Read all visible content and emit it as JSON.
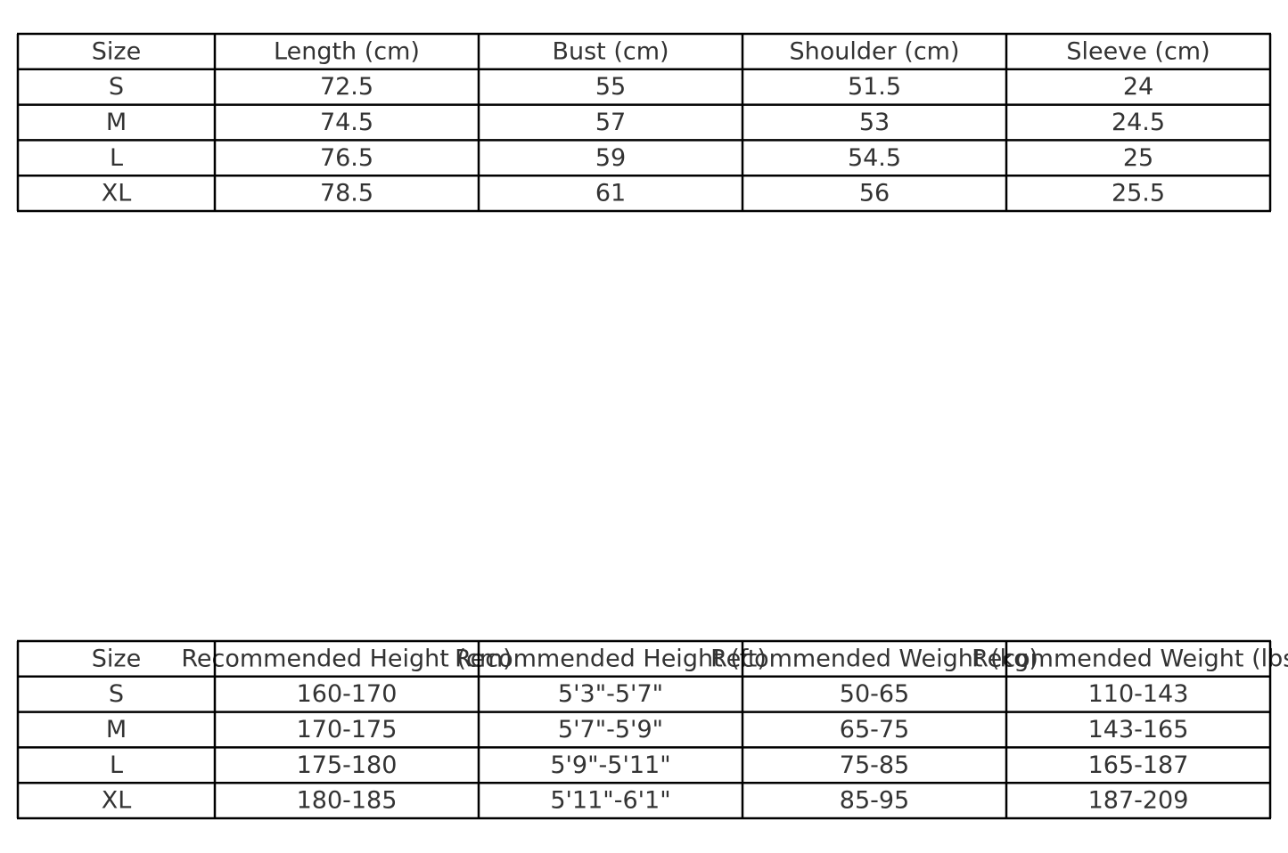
{
  "tables": [
    {
      "header": [
        "Size",
        "Length (cm)",
        "Bust (cm)",
        "Shoulder (cm)",
        "Sleeve (cm)"
      ],
      "rows": [
        [
          "S",
          "72.5",
          "55",
          "51.5",
          "24"
        ],
        [
          "M",
          "74.5",
          "57",
          "53",
          "24.5"
        ],
        [
          "L",
          "76.5",
          "59",
          "54.5",
          "25"
        ],
        [
          "XL",
          "78.5",
          "61",
          "56",
          "25.5"
        ]
      ]
    },
    {
      "header": [
        "Size",
        "Recommended Height (cm)",
        "Recommended Height (ft)",
        "Recommended Weight (kg)",
        "Recommended Weight (lbs)"
      ],
      "rows": [
        [
          "S",
          "160-170",
          "5'3\"-5'7\"",
          "50-65",
          "110-143"
        ],
        [
          "M",
          "170-175",
          "5'7\"-5'9\"",
          "65-75",
          "143-165"
        ],
        [
          "L",
          "175-180",
          "5'9\"-5'11\"",
          "75-85",
          "165-187"
        ],
        [
          "XL",
          "180-185",
          "5'11\"-6'1\"",
          "85-95",
          "187-209"
        ]
      ]
    }
  ]
}
